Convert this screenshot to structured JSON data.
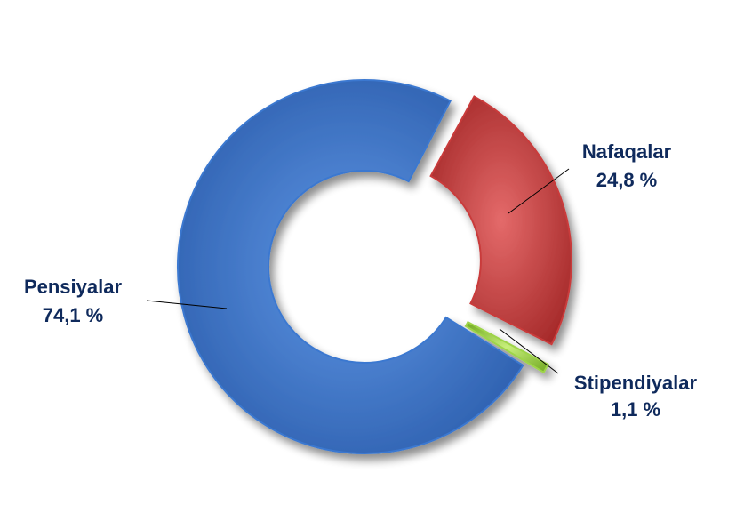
{
  "chart_data": {
    "type": "pie",
    "style": "exploded-doughnut",
    "title": "",
    "slices": [
      {
        "name": "Nafaqalar",
        "value": 24.8,
        "value_label": "24,8 %",
        "color": "#c93b3b"
      },
      {
        "name": "Stipendiyalar",
        "value": 1.1,
        "value_label": "1,1 %",
        "color": "#9ed44a"
      },
      {
        "name": "Pensiyalar",
        "value": 74.1,
        "value_label": "74,1 %",
        "color": "#3b78d0"
      }
    ],
    "legend": "none",
    "labels": "outside-with-leader-lines"
  }
}
